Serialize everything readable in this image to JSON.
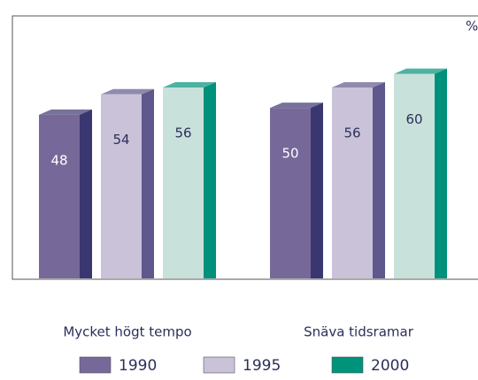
{
  "chart_data": {
    "type": "bar3d",
    "unit_label": "%",
    "categories": [
      "Mycket högt tempo",
      "Snäva tidsramar"
    ],
    "series": [
      {
        "name": "1990",
        "color": "#76699a",
        "side_color": "#3a3670",
        "legend_color": "#76699a",
        "values": [
          48,
          50
        ]
      },
      {
        "name": "1995",
        "color": "#cac2d9",
        "side_color": "#5f588c",
        "legend_color": "#cac2d9",
        "values": [
          54,
          56
        ]
      },
      {
        "name": "2000",
        "color": "#c9e1db",
        "side_color": "#00917a",
        "legend_color": "#00937c",
        "values": [
          56,
          60
        ]
      }
    ],
    "ylim": [
      0,
      77
    ]
  }
}
